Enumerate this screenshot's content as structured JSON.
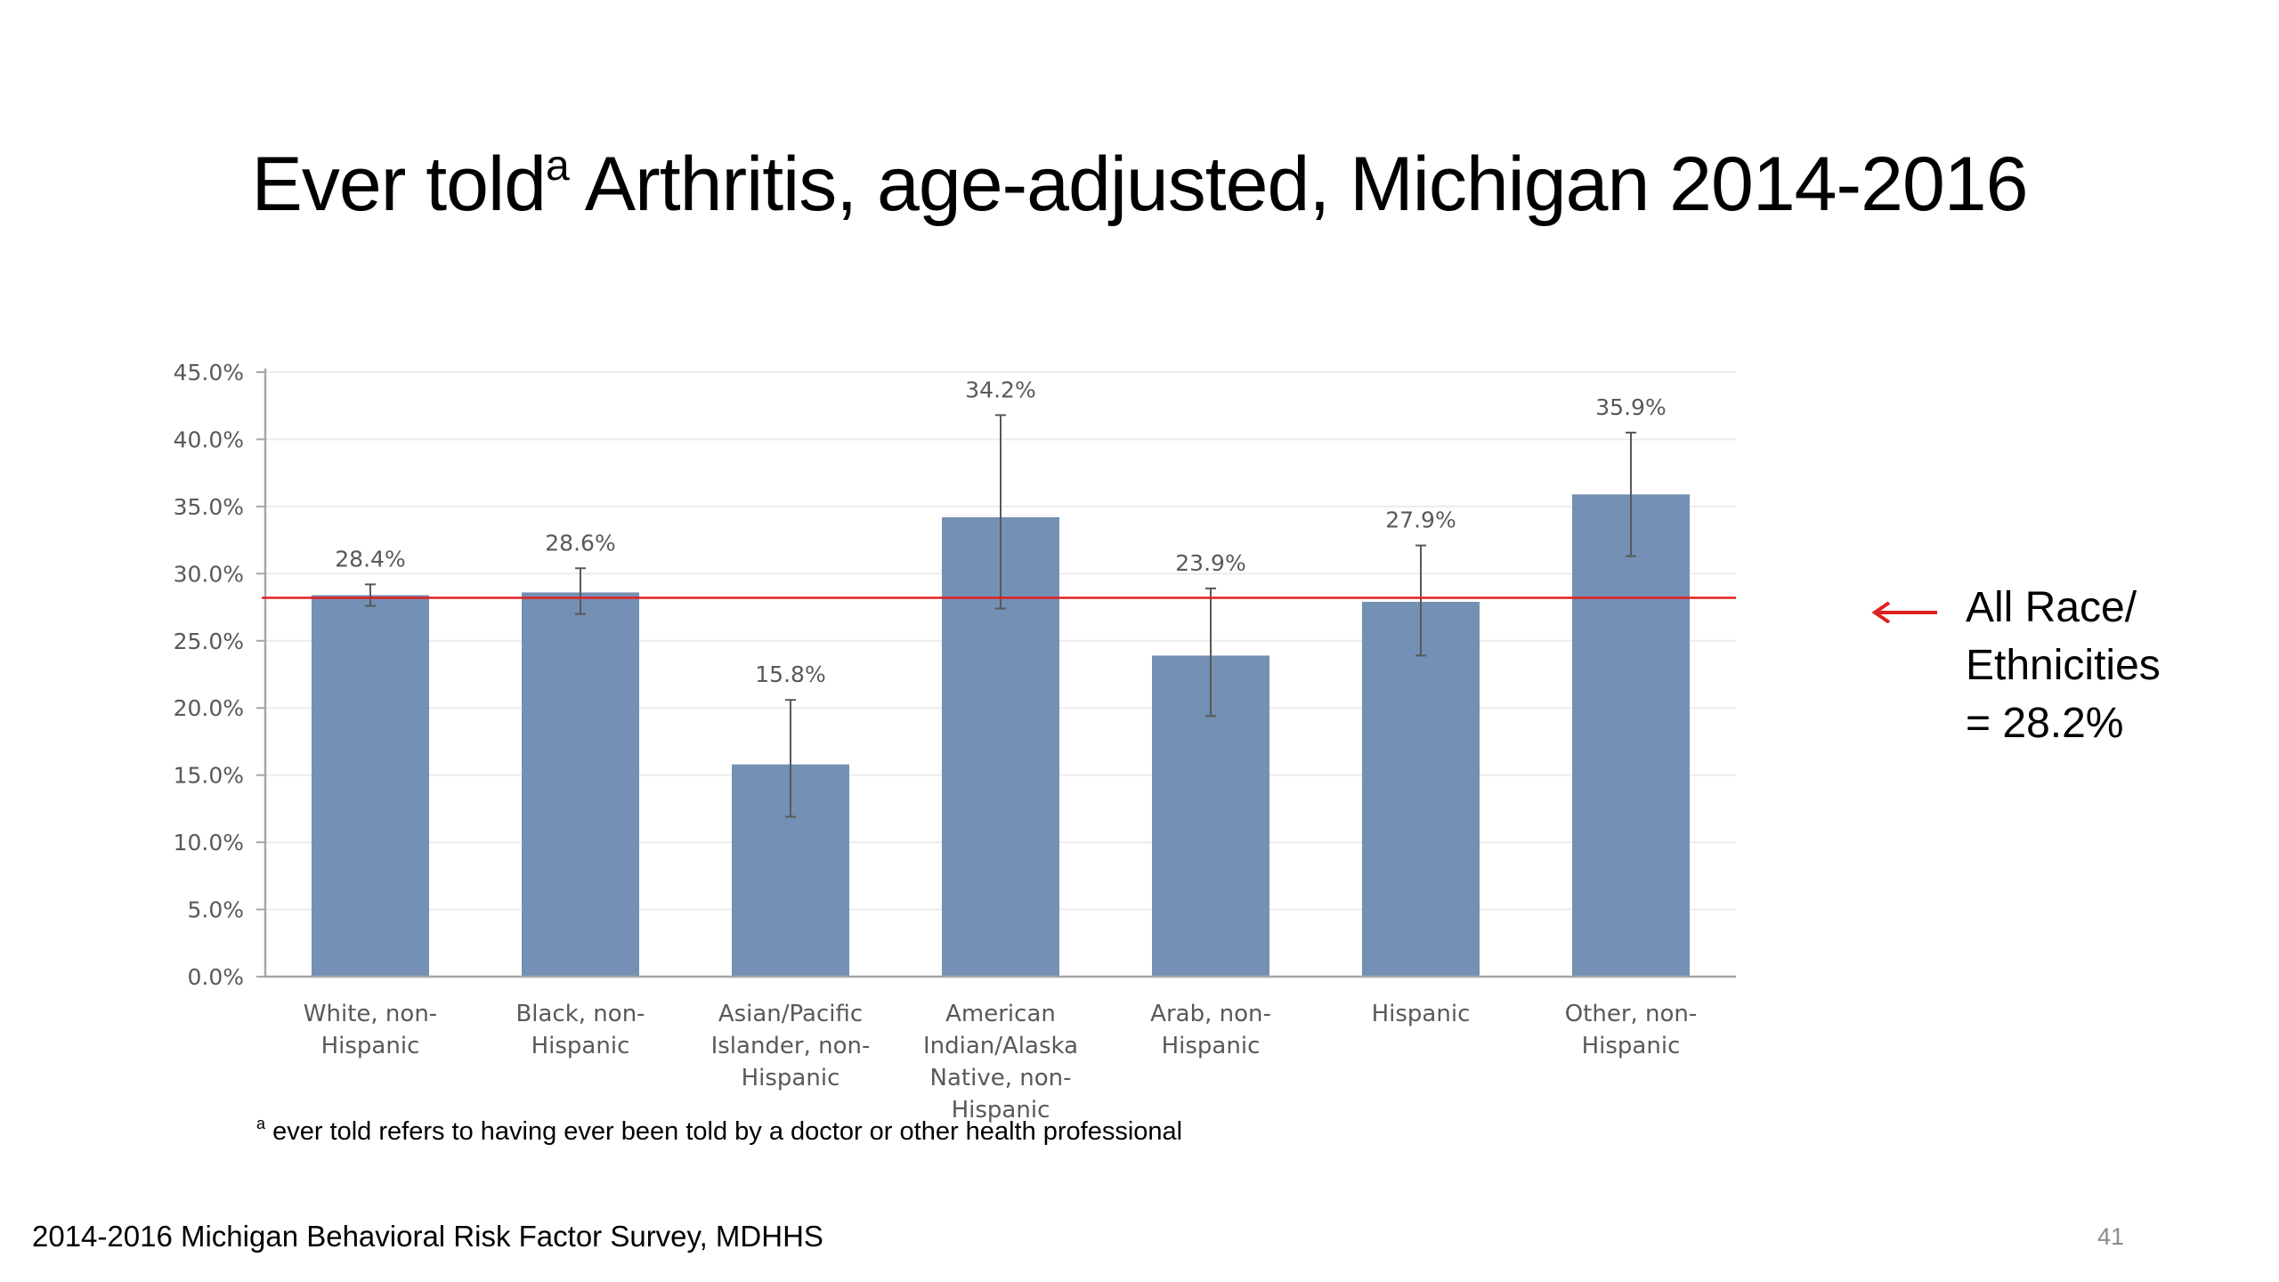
{
  "title": {
    "prefix": "Ever told",
    "superscript": "a",
    "suffix": " Arthritis, age-adjusted, Michigan 2014-2016"
  },
  "chart_data": {
    "type": "bar",
    "categories": [
      [
        "White, non-",
        "Hispanic"
      ],
      [
        "Black, non-",
        "Hispanic"
      ],
      [
        "Asian/Pacific",
        "Islander, non-",
        "Hispanic"
      ],
      [
        "American",
        "Indian/Alaska",
        "Native, non-",
        "Hispanic"
      ],
      [
        "Arab, non-",
        "Hispanic"
      ],
      [
        "Hispanic"
      ],
      [
        "Other, non-",
        "Hispanic"
      ]
    ],
    "values": [
      28.4,
      28.6,
      15.8,
      34.2,
      23.9,
      27.9,
      35.9
    ],
    "value_labels": [
      "28.4%",
      "28.6%",
      "15.8%",
      "34.2%",
      "23.9%",
      "27.9%",
      "35.9%"
    ],
    "error_low": [
      27.6,
      27.0,
      11.9,
      27.4,
      19.4,
      23.9,
      31.3
    ],
    "error_high": [
      29.2,
      30.4,
      20.6,
      41.8,
      28.9,
      32.1,
      40.5
    ],
    "ylim": [
      0,
      45
    ],
    "yticks": [
      0,
      5,
      10,
      15,
      20,
      25,
      30,
      35,
      40,
      45
    ],
    "ytick_labels": [
      "0.0%",
      "5.0%",
      "10.0%",
      "15.0%",
      "20.0%",
      "25.0%",
      "30.0%",
      "35.0%",
      "40.0%",
      "45.0%"
    ],
    "reference_line": 28.2,
    "grid": true,
    "xlabel": "",
    "ylabel": ""
  },
  "colors": {
    "bar": "#7490b4",
    "reference_line": "#e02020",
    "error_bar": "#595959",
    "axis": "#a6a6a6",
    "grid": "#ececec",
    "tick_text": "#595959",
    "page_number": "#8c8c8c"
  },
  "legend": {
    "lines": [
      "All Race/",
      "Ethnicities",
      "= 28.2%"
    ]
  },
  "footnote": {
    "marker": "a",
    "text": " ever told refers to having ever been told by a doctor or other health professional"
  },
  "source": "2014-2016 Michigan Behavioral Risk Factor Survey, MDHHS",
  "page_number": "41"
}
